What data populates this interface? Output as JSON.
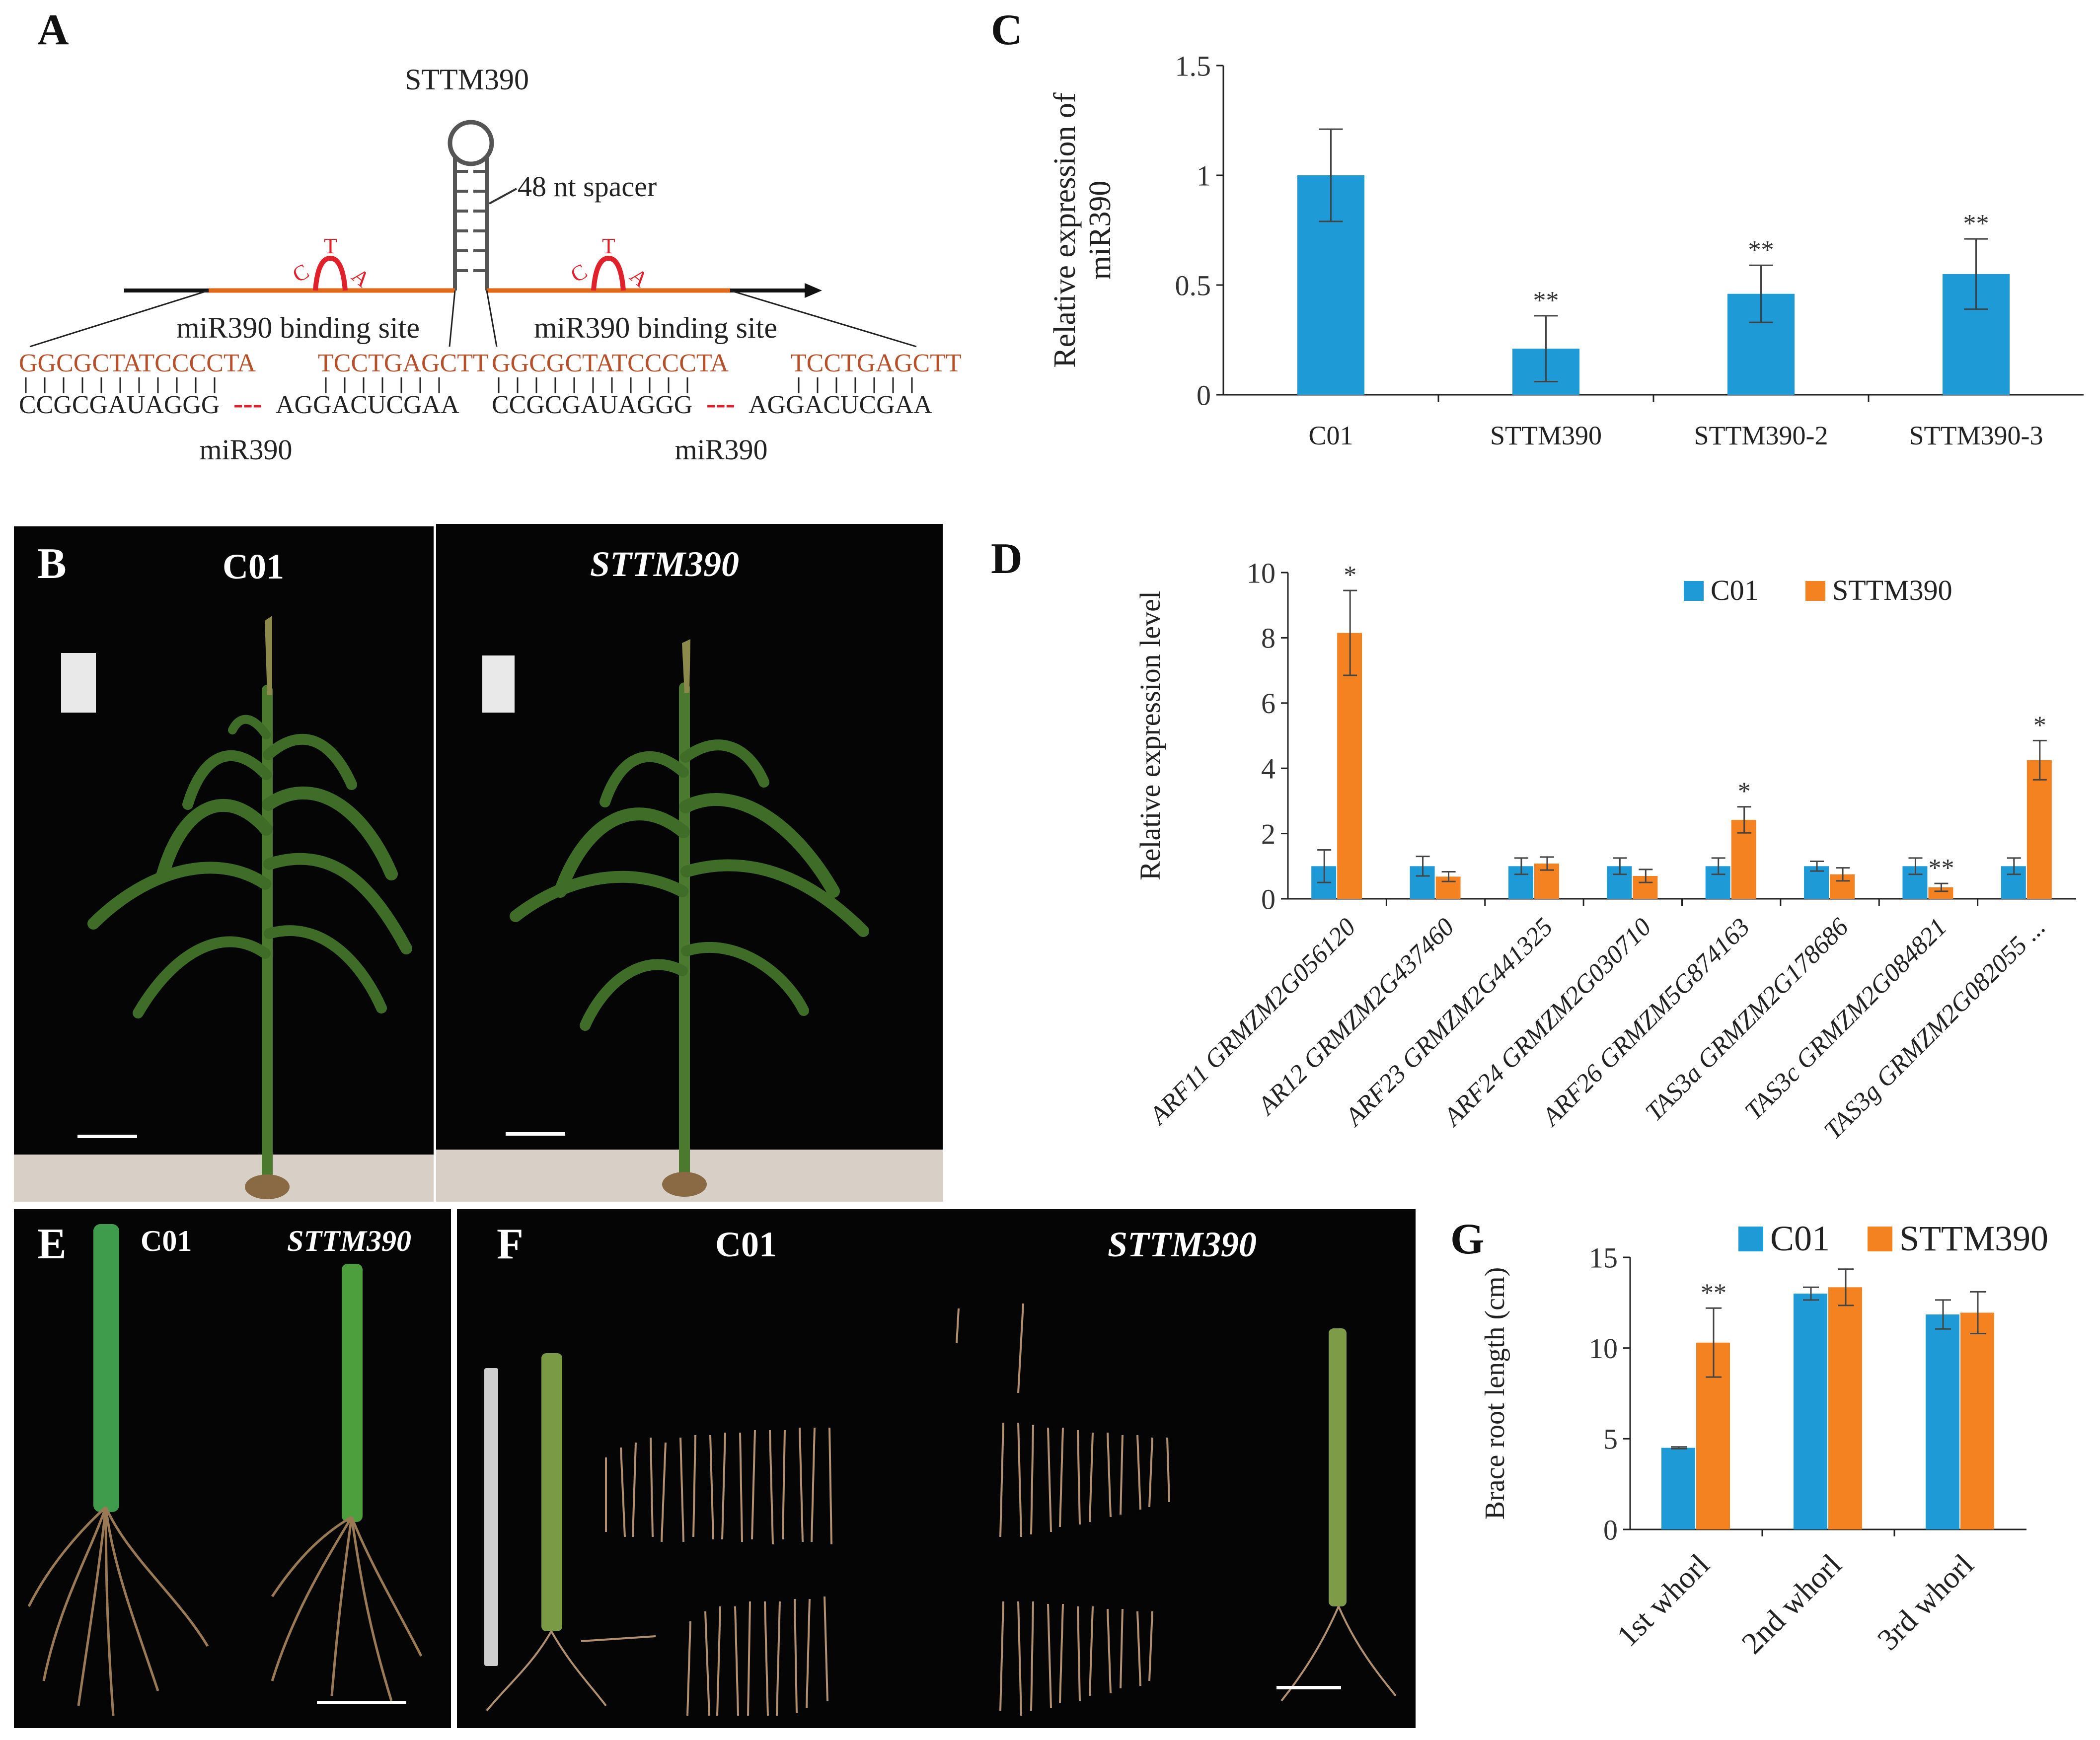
{
  "panels": {
    "A": {
      "letter": "A",
      "construct_label": "STTM390",
      "spacer_label": "48 nt spacer",
      "bulge_letters": [
        "C",
        "T",
        "A"
      ],
      "sites": [
        {
          "binding_label": "miR390 binding site",
          "top_seq_a": "GGCGCTATCCCCTA",
          "top_seq_b": "TCCTGAGCTT",
          "bottom_seq_a": "CCGCGAUAGGG",
          "dash": "---",
          "bottom_seq_b": "AGGACUCGAA",
          "mirna_label": "miR390"
        },
        {
          "binding_label": "miR390 binding site",
          "top_seq_a": "GGCGCTATCCCCTA",
          "top_seq_b": "TCCTGAGCTT",
          "bottom_seq_a": "CCGCGAUAGGG",
          "dash": "---",
          "bottom_seq_b": "AGGACUCGAA",
          "mirna_label": "miR390"
        }
      ]
    },
    "B": {
      "letter": "B",
      "left_label": "C01",
      "right_label": "STTM390"
    },
    "C": {
      "letter": "C"
    },
    "D": {
      "letter": "D"
    },
    "E": {
      "letter": "E",
      "left_label": "C01",
      "right_label": "STTM390"
    },
    "F": {
      "letter": "F",
      "left_label": "C01",
      "right_label": "STTM390"
    },
    "G": {
      "letter": "G"
    }
  },
  "colors": {
    "blue": "#1e9bd7",
    "orange": "#f58221",
    "seq_red": "#b5502a",
    "bulge_red": "#e0202a",
    "arrow_orange": "#e06a1a",
    "photo_bg": "#050505"
  },
  "chart_data": [
    {
      "id": "C",
      "type": "bar",
      "ylabel": "Relative expression of miR390",
      "categories": [
        "C01",
        "STTM390",
        "STTM390-2",
        "STTM390-3"
      ],
      "values": [
        1.0,
        0.21,
        0.46,
        0.55
      ],
      "errors": [
        0.21,
        0.15,
        0.13,
        0.16
      ],
      "annotations": [
        "",
        "**",
        "**",
        "**"
      ],
      "ylim": [
        0,
        1.5
      ],
      "yticks": [
        "0",
        "0.5",
        "1",
        "1.5"
      ],
      "ytick_values": [
        0,
        0.5,
        1,
        1.5
      ],
      "grid": false
    },
    {
      "id": "D",
      "type": "bar",
      "ylabel": "Relative expression level",
      "categories": [
        "ARF11 GRMZM2G056120",
        "AR12 GRMZM2G437460",
        "ARF23 GRMZM2G441325",
        "ARF24 GRMZM2G030710",
        "ARF26 GRMZM5G874163",
        "TAS3a GRMZM2G178686",
        "TAS3c GRMZM2G084821",
        "TAS3g GRMZM2G082055 ..."
      ],
      "series": [
        {
          "name": "C01",
          "values": [
            1.0,
            1.0,
            1.0,
            1.0,
            1.0,
            1.0,
            1.0,
            1.0
          ],
          "errors": [
            0.5,
            0.3,
            0.25,
            0.25,
            0.25,
            0.15,
            0.25,
            0.25
          ],
          "annotations": [
            "",
            "",
            "",
            "",
            "",
            "",
            "",
            ""
          ]
        },
        {
          "name": "STTM390",
          "values": [
            8.15,
            0.68,
            1.08,
            0.7,
            2.42,
            0.75,
            0.35,
            4.25
          ],
          "errors": [
            1.3,
            0.15,
            0.2,
            0.2,
            0.4,
            0.2,
            0.12,
            0.6
          ],
          "annotations": [
            "*",
            "",
            "",
            "",
            "*",
            "",
            "**",
            "*"
          ]
        }
      ],
      "ylim": [
        0,
        10
      ],
      "yticks": [
        "0",
        "2",
        "4",
        "6",
        "8",
        "10"
      ],
      "ytick_values": [
        0,
        2,
        4,
        6,
        8,
        10
      ],
      "legend": "top-right",
      "grid": false
    },
    {
      "id": "G",
      "type": "bar",
      "ylabel": "Brace root length (cm)",
      "categories": [
        "1st whorl",
        "2nd whorl",
        "3rd whorl"
      ],
      "series": [
        {
          "name": "C01",
          "values": [
            4.5,
            13.0,
            11.85
          ],
          "errors": [
            0.05,
            0.35,
            0.8
          ],
          "annotations": [
            "",
            "",
            ""
          ]
        },
        {
          "name": "STTM390",
          "values": [
            10.3,
            13.35,
            11.95
          ],
          "errors": [
            1.9,
            1.0,
            1.15
          ],
          "annotations": [
            "**",
            "",
            ""
          ]
        }
      ],
      "ylim": [
        0,
        15
      ],
      "yticks": [
        "0",
        "5",
        "10",
        "15"
      ],
      "ytick_values": [
        0,
        5,
        10,
        15
      ],
      "legend": "top",
      "grid": false
    }
  ]
}
